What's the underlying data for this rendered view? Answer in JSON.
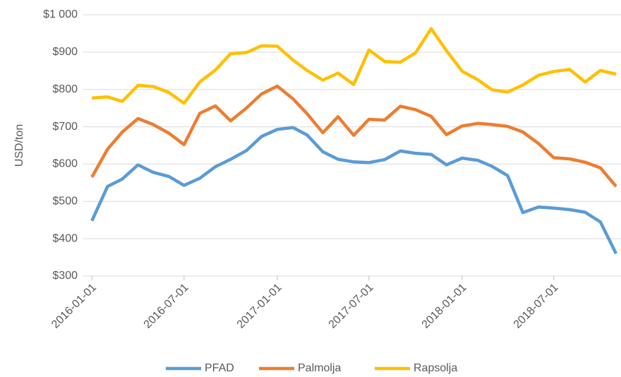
{
  "chart_data": {
    "type": "line",
    "y_label": "USD/ton",
    "x": [
      "2016-01-01",
      "2016-02-01",
      "2016-03-01",
      "2016-04-01",
      "2016-05-01",
      "2016-06-01",
      "2016-07-01",
      "2016-08-01",
      "2016-09-01",
      "2016-10-01",
      "2016-11-01",
      "2016-12-01",
      "2017-01-01",
      "2017-02-01",
      "2017-03-01",
      "2017-04-01",
      "2017-05-01",
      "2017-06-01",
      "2017-07-01",
      "2017-08-01",
      "2017-09-01",
      "2017-10-01",
      "2017-11-01",
      "2017-12-01",
      "2018-01-01",
      "2018-02-01",
      "2018-03-01",
      "2018-04-01",
      "2018-05-01",
      "2018-06-01",
      "2018-07-01",
      "2018-08-01",
      "2018-09-01",
      "2018-10-01",
      "2018-11-01"
    ],
    "series": [
      {
        "name": "PFAD",
        "color": "#5b9bd5",
        "values": [
          448,
          540,
          560,
          598,
          578,
          567,
          543,
          562,
          593,
          613,
          636,
          674,
          693,
          698,
          678,
          633,
          613,
          606,
          604,
          612,
          635,
          629,
          626,
          598,
          616,
          610,
          594,
          569,
          470,
          485,
          482,
          478,
          471,
          445,
          360
        ]
      },
      {
        "name": "Palmolja",
        "color": "#ed7d31",
        "values": [
          565,
          640,
          686,
          722,
          706,
          683,
          652,
          736,
          756,
          716,
          750,
          788,
          809,
          775,
          735,
          684,
          727,
          677,
          720,
          718,
          755,
          746,
          728,
          679,
          702,
          709,
          706,
          701,
          686,
          655,
          617,
          614,
          605,
          590,
          540
        ]
      },
      {
        "name": "Rapsolja",
        "color": "#ffc000",
        "values": [
          777,
          780,
          768,
          811,
          808,
          792,
          763,
          820,
          852,
          896,
          899,
          917,
          916,
          879,
          851,
          825,
          844,
          813,
          906,
          875,
          873,
          898,
          963,
          904,
          849,
          826,
          799,
          793,
          812,
          838,
          848,
          854,
          820,
          851,
          841
        ]
      }
    ],
    "xlim": [
      "2015-12-15",
      "2018-11-01"
    ],
    "xticks": [
      "2016-01-01",
      "2016-07-01",
      "2017-01-01",
      "2017-07-01",
      "2018-01-01",
      "2018-07-01"
    ],
    "ylim": [
      300,
      1000
    ],
    "yticks": [
      {
        "value": 300,
        "label": "$300"
      },
      {
        "value": 400,
        "label": "$400"
      },
      {
        "value": 500,
        "label": "$500"
      },
      {
        "value": 600,
        "label": "$600"
      },
      {
        "value": 700,
        "label": "$700"
      },
      {
        "value": 800,
        "label": "$800"
      },
      {
        "value": 900,
        "label": "$900"
      },
      {
        "value": 1000,
        "label": "$1 000"
      }
    ],
    "grid": true,
    "legend": "bottom"
  }
}
